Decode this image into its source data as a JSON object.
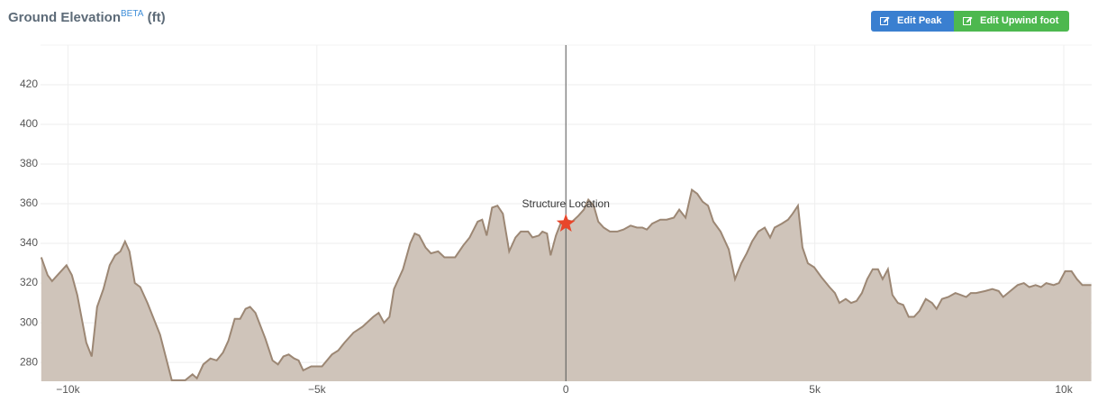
{
  "header": {
    "title": "Ground Elevation",
    "badge": "BETA",
    "unit": "(ft)"
  },
  "buttons": [
    "Edit Peak",
    "Edit Upwind foot"
  ],
  "chart_data": {
    "type": "area",
    "color": "#cfc4ba",
    "line_color": "#9c8774",
    "grid": true,
    "xlim": [
      -10550,
      10560
    ],
    "ylim": [
      270.5,
      440
    ],
    "xticks": [
      {
        "value": -10000,
        "label": "−10k"
      },
      {
        "value": -5000,
        "label": "−5k"
      },
      0,
      {
        "value": 5000,
        "label": "5k"
      },
      {
        "value": 10000,
        "label": "10k"
      }
    ],
    "yticks": [
      280,
      300,
      320,
      340,
      360,
      380,
      400,
      420
    ],
    "annotation": {
      "text": "Structure Location",
      "x": 0,
      "y": 350
    },
    "x": [
      -10535,
      -10408,
      -10318,
      -10173,
      -10029,
      -9920,
      -9812,
      -9631,
      -9523,
      -9414,
      -9288,
      -9161,
      -9053,
      -8945,
      -8854,
      -8764,
      -8656,
      -8547,
      -8403,
      -8150,
      -7915,
      -7644,
      -7499,
      -7409,
      -7282,
      -7138,
      -7011,
      -6885,
      -6776,
      -6650,
      -6541,
      -6433,
      -6343,
      -6234,
      -6035,
      -5891,
      -5782,
      -5674,
      -5566,
      -5457,
      -5367,
      -5276,
      -5114,
      -4897,
      -4698,
      -4572,
      -4445,
      -4265,
      -4084,
      -3867,
      -3759,
      -3650,
      -3542,
      -3451,
      -3271,
      -3126,
      -3036,
      -2945,
      -2819,
      -2711,
      -2566,
      -2439,
      -2223,
      -2060,
      -1933,
      -1771,
      -1681,
      -1590,
      -1482,
      -1373,
      -1265,
      -1138,
      -1012,
      -904,
      -759,
      -669,
      -542,
      -470,
      -379,
      -307,
      -199,
      -108,
      0,
      126,
      253,
      361,
      452,
      560,
      651,
      759,
      885,
      1030,
      1156,
      1301,
      1428,
      1536,
      1626,
      1735,
      1897,
      2024,
      2168,
      2277,
      2403,
      2530,
      2638,
      2747,
      2855,
      2963,
      3108,
      3271,
      3397,
      3524,
      3632,
      3740,
      3867,
      3993,
      4102,
      4192,
      4337,
      4463,
      4554,
      4662,
      4752,
      4861,
      4987,
      5132,
      5294,
      5403,
      5493,
      5620,
      5728,
      5837,
      5945,
      6053,
      6162,
      6270,
      6361,
      6469,
      6559,
      6668,
      6776,
      6885,
      6993,
      7102,
      7228,
      7355,
      7445,
      7553,
      7680,
      7824,
      7933,
      8041,
      8132,
      8240,
      8421,
      8565,
      8692,
      8782,
      8927,
      9071,
      9198,
      9306,
      9433,
      9541,
      9649,
      9794,
      9902,
      10029,
      10155,
      10264,
      10372,
      10553
    ],
    "values": [
      333,
      324,
      321,
      325,
      329,
      324,
      314,
      290,
      283,
      308,
      317,
      329,
      334,
      336,
      341,
      336,
      320,
      318,
      310,
      294,
      271,
      271,
      274,
      272,
      279,
      282,
      281,
      285,
      291,
      302,
      302,
      307,
      308,
      305,
      292,
      281,
      279,
      283,
      284,
      282,
      281,
      276,
      278,
      278,
      284,
      286,
      290,
      295,
      298,
      303,
      305,
      300,
      303,
      317,
      327,
      340,
      345,
      344,
      338,
      335,
      336,
      333,
      333,
      339,
      343,
      351,
      352,
      344,
      358,
      359,
      355,
      336,
      343,
      346,
      346,
      343,
      344,
      346,
      345,
      334,
      344,
      350,
      352,
      351,
      354,
      357,
      362,
      359,
      351,
      348,
      346,
      346,
      347,
      349,
      348,
      348,
      347,
      350,
      352,
      352,
      353,
      357,
      353,
      367,
      365,
      361,
      359,
      351,
      346,
      337,
      322,
      330,
      335,
      341,
      346,
      348,
      343,
      348,
      350,
      352,
      355,
      359,
      338,
      330,
      328,
      323,
      318,
      315,
      310,
      312,
      310,
      311,
      315,
      322,
      327,
      327,
      322,
      327,
      314,
      310,
      309,
      303,
      303,
      306,
      312,
      310,
      307,
      312,
      313,
      315,
      314,
      313,
      315,
      315,
      316,
      317,
      316,
      313,
      316,
      319,
      320,
      318,
      319,
      318,
      320,
      319,
      320,
      326,
      326,
      322,
      319,
      319
    ]
  }
}
